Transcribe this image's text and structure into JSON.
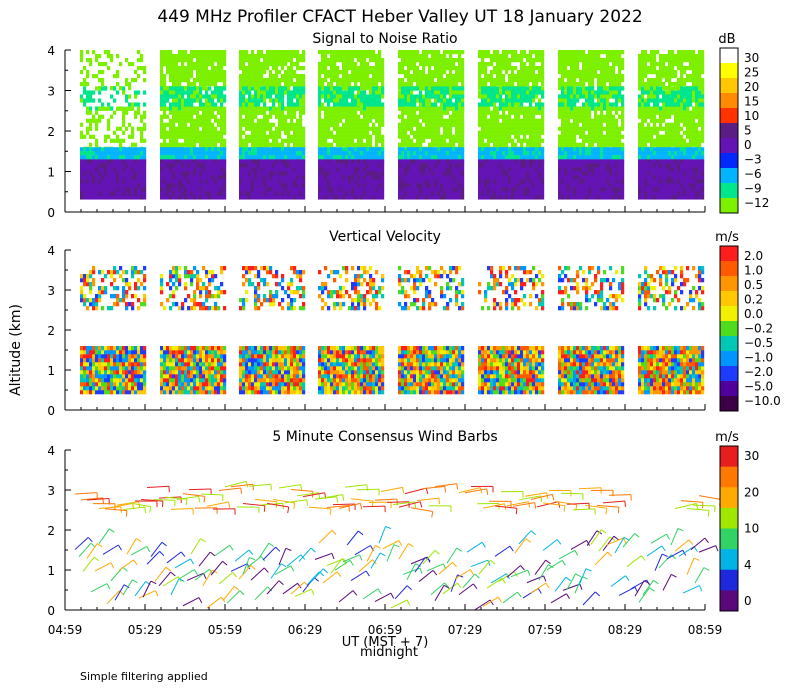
{
  "figure": {
    "title": "449 MHz Profiler CFACT Heber Valley UT 18 January 2022",
    "ylabel": "Altitude (km)",
    "xlabel": "UT  (MST + 7)",
    "midnight_label": "midnight",
    "footnote": "Simple filtering applied"
  },
  "chart_data": [
    {
      "type": "heatmap",
      "title": "Signal to Noise Ratio",
      "ylim": [
        0,
        4
      ],
      "yticks": [
        "0",
        "1",
        "2",
        "3",
        "4"
      ],
      "x_ticks": [
        "04:59",
        "05:29",
        "05:59",
        "06:29",
        "06:59",
        "07:29",
        "07:59",
        "08:29",
        "08:59"
      ],
      "xlim": [
        "04:59",
        "08:59"
      ],
      "colorbar": {
        "unit": "dB",
        "labels": [
          "30",
          "25",
          "20",
          "15",
          "10",
          "5",
          "0",
          "−3",
          "−6",
          "−9",
          "−12"
        ],
        "colors": [
          "#ffffff",
          "#ffff00",
          "#ffc800",
          "#ff8c00",
          "#ff3200",
          "#5a1e82",
          "#6414b4",
          "#0028ff",
          "#00b4ff",
          "#00e68c",
          "#7df000"
        ]
      },
      "data_rows": [
        {
          "alt_range": [
            3.1,
            4.0
          ],
          "value": -12
        },
        {
          "alt_range": [
            2.6,
            3.1
          ],
          "value": -9
        },
        {
          "alt_range": [
            1.6,
            2.6
          ],
          "value": -12
        },
        {
          "alt_range": [
            1.3,
            1.6
          ],
          "value": -6
        },
        {
          "alt_range": [
            0.4,
            1.3
          ],
          "value": 2
        }
      ]
    },
    {
      "type": "heatmap",
      "title": "Vertical Velocity",
      "ylim": [
        0,
        4
      ],
      "yticks": [
        "0",
        "1",
        "2",
        "3",
        "4"
      ],
      "x_ticks": [
        "04:59",
        "05:29",
        "05:59",
        "06:29",
        "06:59",
        "07:29",
        "07:59",
        "08:29",
        "08:59"
      ],
      "colorbar": {
        "unit": "m/s",
        "labels": [
          "2.0",
          "1.0",
          "0.5",
          "0.2",
          "0.0",
          "−0.2",
          "−0.5",
          "−1.0",
          "−2.0",
          "−5.0",
          "−10.0"
        ],
        "colors": [
          "#ff1e1e",
          "#ff5a00",
          "#ff9600",
          "#ffc800",
          "#f0f000",
          "#50dc1e",
          "#00c8b4",
          "#0096ff",
          "#1e3cff",
          "#50009b",
          "#3c0046"
        ]
      }
    },
    {
      "type": "scatter",
      "title": "5 Minute Consensus Wind Barbs",
      "ylim": [
        0,
        4
      ],
      "yticks": [
        "0",
        "1",
        "2",
        "3",
        "4"
      ],
      "x_ticks": [
        "04:59",
        "05:29",
        "05:59",
        "06:29",
        "06:59",
        "07:29",
        "07:59",
        "08:29",
        "08:59"
      ],
      "colorbar": {
        "unit": "m/s",
        "labels": [
          "30",
          "20",
          "10",
          "4",
          "0"
        ],
        "colors": [
          "#e61e1e",
          "#ff7800",
          "#ffaa00",
          "#a0e600",
          "#32d264",
          "#00b4e6",
          "#1e28dc",
          "#5a0a78"
        ]
      },
      "barb_layers": [
        {
          "alt_range": [
            2.5,
            3.1
          ],
          "speed_ms": 16,
          "direction": "W"
        },
        {
          "alt_range": [
            0.0,
            1.7
          ],
          "speed_ms": 8,
          "direction": "SW"
        }
      ]
    }
  ]
}
